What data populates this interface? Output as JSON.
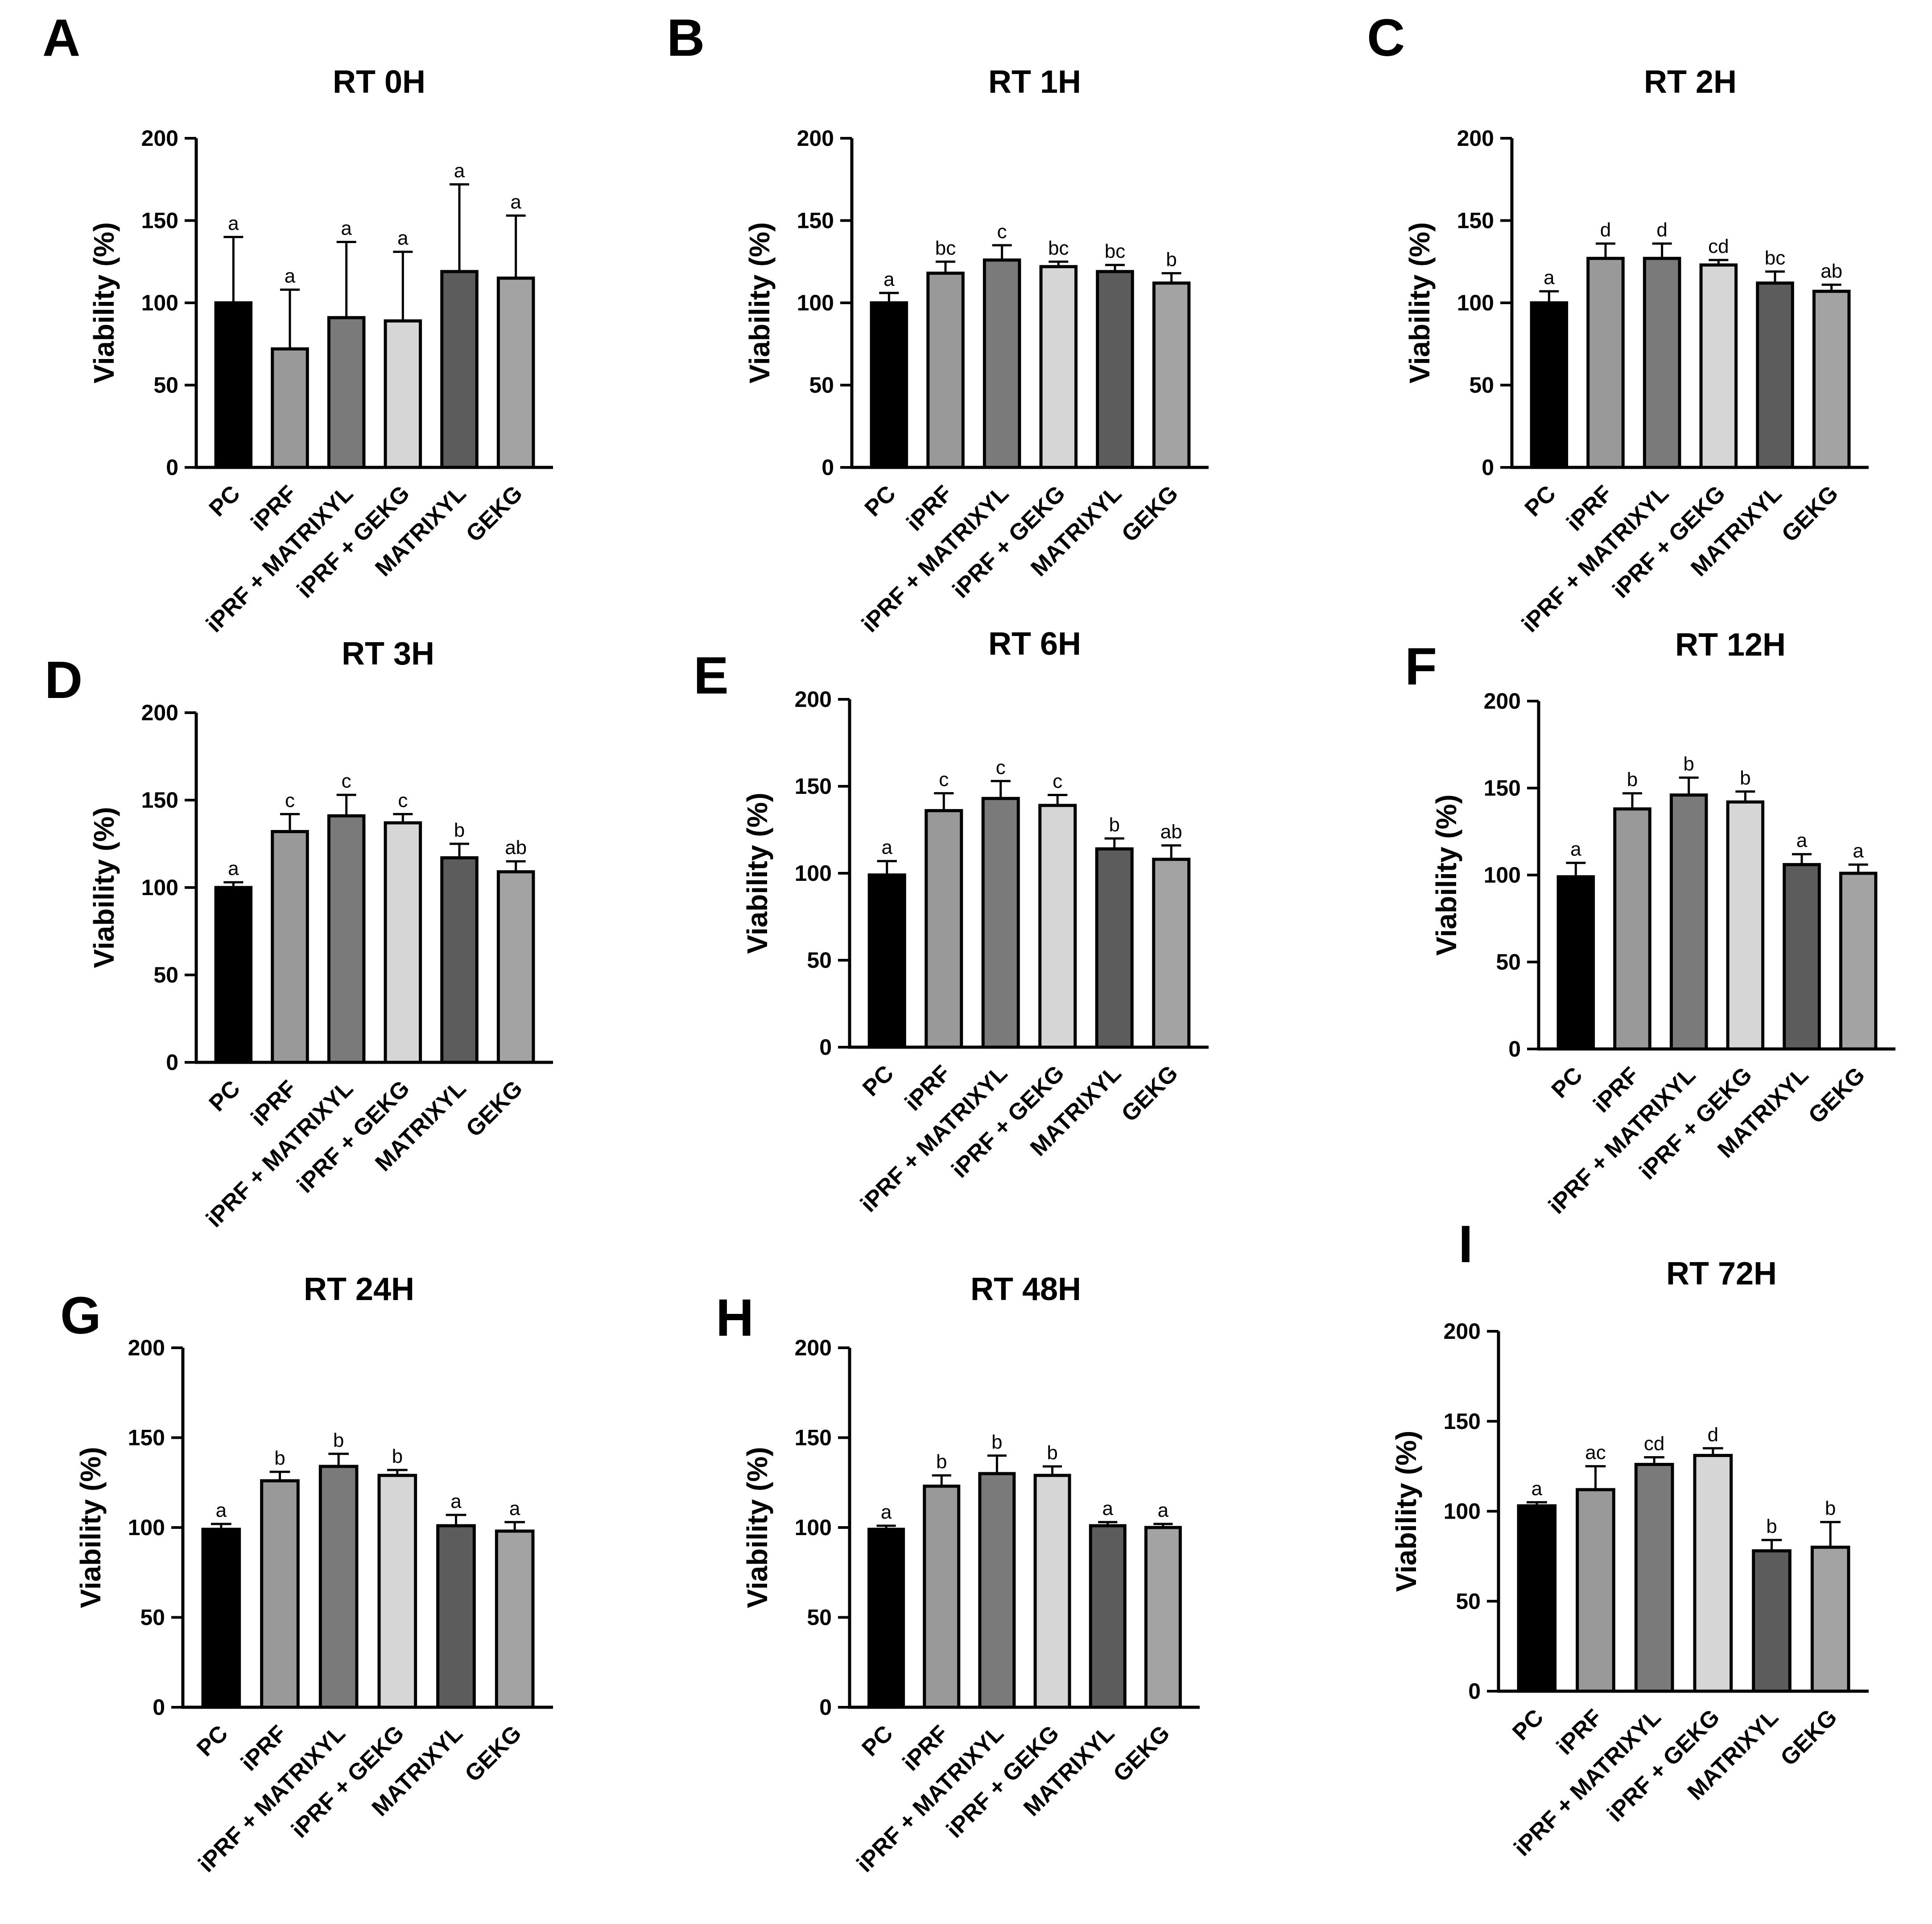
{
  "chart_data": [
    {
      "type": "bar",
      "panel": "A",
      "title": "RT 0H",
      "ylabel": "Viability (%)",
      "ylim": [
        0,
        200
      ],
      "yticks": [
        0,
        50,
        100,
        150,
        200
      ],
      "categories": [
        "PC",
        "iPRF",
        "iPRF + MATRIXYL",
        "iPRF + GEKG",
        "MATRIXYL",
        "GEKG"
      ],
      "values": [
        100,
        72,
        91,
        89,
        119,
        115
      ],
      "errors": [
        40,
        36,
        46,
        42,
        53,
        38
      ],
      "significance": [
        "a",
        "a",
        "a",
        "a",
        "a",
        "a"
      ]
    },
    {
      "type": "bar",
      "panel": "B",
      "title": "RT 1H",
      "ylabel": "Viability (%)",
      "ylim": [
        0,
        200
      ],
      "yticks": [
        0,
        50,
        100,
        150,
        200
      ],
      "categories": [
        "PC",
        "iPRF",
        "iPRF + MATRIXYL",
        "iPRF + GEKG",
        "MATRIXYL",
        "GEKG"
      ],
      "values": [
        100,
        118,
        126,
        122,
        119,
        112
      ],
      "errors": [
        6,
        7,
        9,
        3,
        4,
        6
      ],
      "significance": [
        "a",
        "bc",
        "c",
        "bc",
        "bc",
        "b"
      ]
    },
    {
      "type": "bar",
      "panel": "C",
      "title": "RT 2H",
      "ylabel": "Viability (%)",
      "ylim": [
        0,
        200
      ],
      "yticks": [
        0,
        50,
        100,
        150,
        200
      ],
      "categories": [
        "PC",
        "iPRF",
        "iPRF + MATRIXYL",
        "iPRF + GEKG",
        "MATRIXYL",
        "GEKG"
      ],
      "values": [
        100,
        127,
        127,
        123,
        112,
        107
      ],
      "errors": [
        7,
        9,
        9,
        3,
        7,
        4
      ],
      "significance": [
        "a",
        "d",
        "d",
        "cd",
        "bc",
        "ab"
      ]
    },
    {
      "type": "bar",
      "panel": "D",
      "title": "RT 3H",
      "ylabel": "Viability (%)",
      "ylim": [
        0,
        200
      ],
      "yticks": [
        0,
        50,
        100,
        150,
        200
      ],
      "categories": [
        "PC",
        "iPRF",
        "iPRF + MATRIXYL",
        "iPRF + GEKG",
        "MATRIXYL",
        "GEKG"
      ],
      "values": [
        100,
        132,
        141,
        137,
        117,
        109
      ],
      "errors": [
        3,
        10,
        12,
        5,
        8,
        6
      ],
      "significance": [
        "a",
        "c",
        "c",
        "c",
        "b",
        "ab"
      ]
    },
    {
      "type": "bar",
      "panel": "E",
      "title": "RT 6H",
      "ylabel": "Viability (%)",
      "ylim": [
        0,
        200
      ],
      "yticks": [
        0,
        50,
        100,
        150,
        200
      ],
      "categories": [
        "PC",
        "iPRF",
        "iPRF + MATRIXYL",
        "iPRF + GEKG",
        "MATRIXYL",
        "GEKG"
      ],
      "values": [
        99,
        136,
        143,
        139,
        114,
        108
      ],
      "errors": [
        8,
        10,
        10,
        6,
        6,
        8
      ],
      "significance": [
        "a",
        "c",
        "c",
        "c",
        "b",
        "ab"
      ]
    },
    {
      "type": "bar",
      "panel": "F",
      "title": "RT 12H",
      "ylabel": "Viability (%)",
      "ylim": [
        0,
        200
      ],
      "yticks": [
        0,
        50,
        100,
        150,
        200
      ],
      "categories": [
        "PC",
        "iPRF",
        "iPRF + MATRIXYL",
        "iPRF + GEKG",
        "MATRIXYL",
        "GEKG"
      ],
      "values": [
        99,
        138,
        146,
        142,
        106,
        101
      ],
      "errors": [
        8,
        9,
        10,
        6,
        6,
        5
      ],
      "significance": [
        "a",
        "b",
        "b",
        "b",
        "a",
        "a"
      ]
    },
    {
      "type": "bar",
      "panel": "G",
      "title": "RT 24H",
      "ylabel": "Viability (%)",
      "ylim": [
        0,
        200
      ],
      "yticks": [
        0,
        50,
        100,
        150,
        200
      ],
      "categories": [
        "PC",
        "iPRF",
        "iPRF + MATRIXYL",
        "iPRF + GEKG",
        "MATRIXYL",
        "GEKG"
      ],
      "values": [
        99,
        126,
        134,
        129,
        101,
        98
      ],
      "errors": [
        3,
        5,
        7,
        3,
        6,
        5
      ],
      "significance": [
        "a",
        "b",
        "b",
        "b",
        "a",
        "a"
      ]
    },
    {
      "type": "bar",
      "panel": "H",
      "title": "RT 48H",
      "ylabel": "Viability (%)",
      "ylim": [
        0,
        200
      ],
      "yticks": [
        0,
        50,
        100,
        150,
        200
      ],
      "categories": [
        "PC",
        "iPRF",
        "iPRF + MATRIXYL",
        "iPRF + GEKG",
        "MATRIXYL",
        "GEKG"
      ],
      "values": [
        99,
        123,
        130,
        129,
        101,
        100
      ],
      "errors": [
        2,
        6,
        10,
        5,
        2,
        2
      ],
      "significance": [
        "a",
        "b",
        "b",
        "b",
        "a",
        "a"
      ]
    },
    {
      "type": "bar",
      "panel": "I",
      "title": "RT 72H",
      "ylabel": "Viability (%)",
      "ylim": [
        0,
        200
      ],
      "yticks": [
        0,
        50,
        100,
        150,
        200
      ],
      "categories": [
        "PC",
        "iPRF",
        "iPRF + MATRIXYL",
        "iPRF + GEKG",
        "MATRIXYL",
        "GEKG"
      ],
      "values": [
        103,
        112,
        126,
        131,
        78,
        80
      ],
      "errors": [
        2,
        13,
        4,
        4,
        6,
        14
      ],
      "significance": [
        "a",
        "ac",
        "cd",
        "d",
        "b",
        "b"
      ]
    }
  ],
  "bar_colors": [
    "#000000",
    "#999999",
    "#7a7a7a",
    "#d6d6d6",
    "#5c5c5c",
    "#a3a3a3"
  ]
}
